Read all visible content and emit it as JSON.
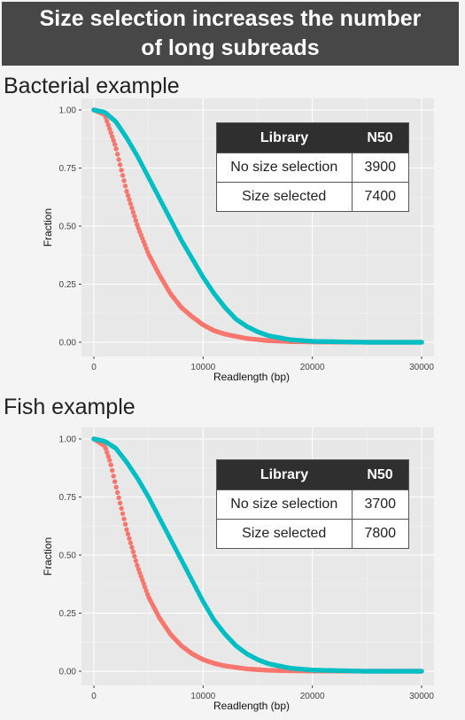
{
  "header": {
    "title_line1": "Size selection increases the number",
    "title_line2": "of long subreads"
  },
  "colors": {
    "no_size_selection": "#f8766d",
    "size_selected": "#00bfc4"
  },
  "chart_data": [
    {
      "type": "scatter",
      "title": "Bacterial example",
      "xlabel": "Readlength (bp)",
      "ylabel": "Fraction",
      "xlim": [
        0,
        30000
      ],
      "ylim": [
        0,
        1
      ],
      "x_ticks": [
        "0",
        "10000",
        "20000",
        "30000"
      ],
      "y_ticks": [
        "0.00",
        "0.25",
        "0.50",
        "0.75",
        "1.00"
      ],
      "grid": true,
      "series": [
        {
          "color": "#f8766d",
          "x": [
            0,
            1000,
            2000,
            3000,
            4000,
            5000,
            6000,
            7000,
            8000,
            9000,
            10000,
            11000,
            12000,
            14000,
            16000,
            18000,
            20000,
            25000,
            30000
          ],
          "values": [
            1.0,
            0.98,
            0.84,
            0.65,
            0.5,
            0.38,
            0.29,
            0.21,
            0.15,
            0.11,
            0.075,
            0.05,
            0.035,
            0.016,
            0.007,
            0.003,
            0.0015,
            0.0,
            0.0
          ]
        },
        {
          "color": "#00bfc4",
          "x": [
            0,
            1000,
            2000,
            3000,
            4000,
            5000,
            6000,
            7000,
            8000,
            9000,
            10000,
            11000,
            12000,
            13000,
            14000,
            15000,
            16000,
            18000,
            20000,
            25000,
            30000
          ],
          "values": [
            1.0,
            0.99,
            0.95,
            0.88,
            0.8,
            0.71,
            0.62,
            0.53,
            0.44,
            0.36,
            0.28,
            0.21,
            0.15,
            0.1,
            0.068,
            0.045,
            0.028,
            0.011,
            0.004,
            0.0,
            0.0
          ]
        }
      ]
    },
    {
      "type": "scatter",
      "title": "Fish example",
      "xlabel": "Readlength (bp)",
      "ylabel": "Fraction",
      "xlim": [
        0,
        30000
      ],
      "ylim": [
        0,
        1
      ],
      "x_ticks": [
        "0",
        "10000",
        "20000",
        "30000"
      ],
      "y_ticks": [
        "0.00",
        "0.25",
        "0.50",
        "0.75",
        "1.00"
      ],
      "grid": true,
      "series": [
        {
          "color": "#f8766d",
          "x": [
            0,
            1000,
            1500,
            2000,
            3000,
            4000,
            5000,
            6000,
            7000,
            8000,
            9000,
            10000,
            11000,
            12000,
            14000,
            16000,
            18000,
            20000,
            25000,
            30000
          ],
          "values": [
            1.0,
            0.97,
            0.9,
            0.8,
            0.61,
            0.45,
            0.32,
            0.23,
            0.16,
            0.11,
            0.075,
            0.05,
            0.034,
            0.023,
            0.01,
            0.004,
            0.002,
            0.001,
            0.0,
            0.0
          ]
        },
        {
          "color": "#00bfc4",
          "x": [
            0,
            1000,
            2000,
            3000,
            4000,
            5000,
            6000,
            7000,
            8000,
            9000,
            10000,
            11000,
            12000,
            13000,
            14000,
            15000,
            16000,
            18000,
            20000,
            25000,
            30000
          ],
          "values": [
            1.0,
            0.99,
            0.96,
            0.9,
            0.83,
            0.75,
            0.66,
            0.57,
            0.48,
            0.39,
            0.3,
            0.22,
            0.16,
            0.11,
            0.075,
            0.05,
            0.032,
            0.013,
            0.005,
            0.0,
            0.0
          ]
        }
      ]
    }
  ],
  "tables": [
    {
      "headers": [
        "Library",
        "N50"
      ],
      "rows": [
        [
          "No size selection",
          "3900"
        ],
        [
          "Size selected",
          "7400"
        ]
      ]
    },
    {
      "headers": [
        "Library",
        "N50"
      ],
      "rows": [
        [
          "No size selection",
          "3700"
        ],
        [
          "Size selected",
          "7800"
        ]
      ]
    }
  ]
}
